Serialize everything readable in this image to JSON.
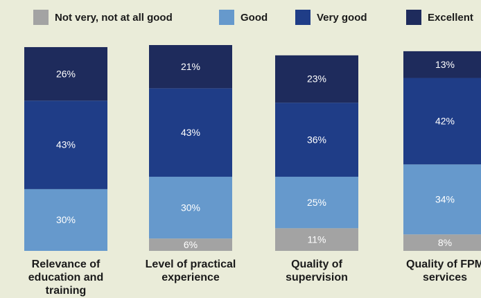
{
  "chart_data": {
    "type": "stacked-bar",
    "categories": [
      "Relevance of education and training",
      "Level of practical experience",
      "Quality of supervision",
      "Quality of FPM services"
    ],
    "series": [
      {
        "name": "Not very, not at all good",
        "color": "#a3a3a3",
        "values": [
          null,
          6,
          11,
          8
        ],
        "value_labels": [
          null,
          "6%",
          "11%",
          "8%"
        ]
      },
      {
        "name": "Good",
        "color": "#6699cc",
        "values": [
          30,
          30,
          25,
          34
        ],
        "value_labels": [
          "30%",
          "30%",
          "25%",
          "34%"
        ]
      },
      {
        "name": "Very good",
        "color": "#1f3d87",
        "values": [
          43,
          43,
          36,
          42
        ],
        "value_labels": [
          "43%",
          "43%",
          "36%",
          "42%"
        ]
      },
      {
        "name": "Excellent",
        "color": "#1e2b5c",
        "values": [
          26,
          21,
          23,
          13
        ],
        "value_labels": [
          "26%",
          "21%",
          "23%",
          "13%"
        ]
      }
    ]
  }
}
